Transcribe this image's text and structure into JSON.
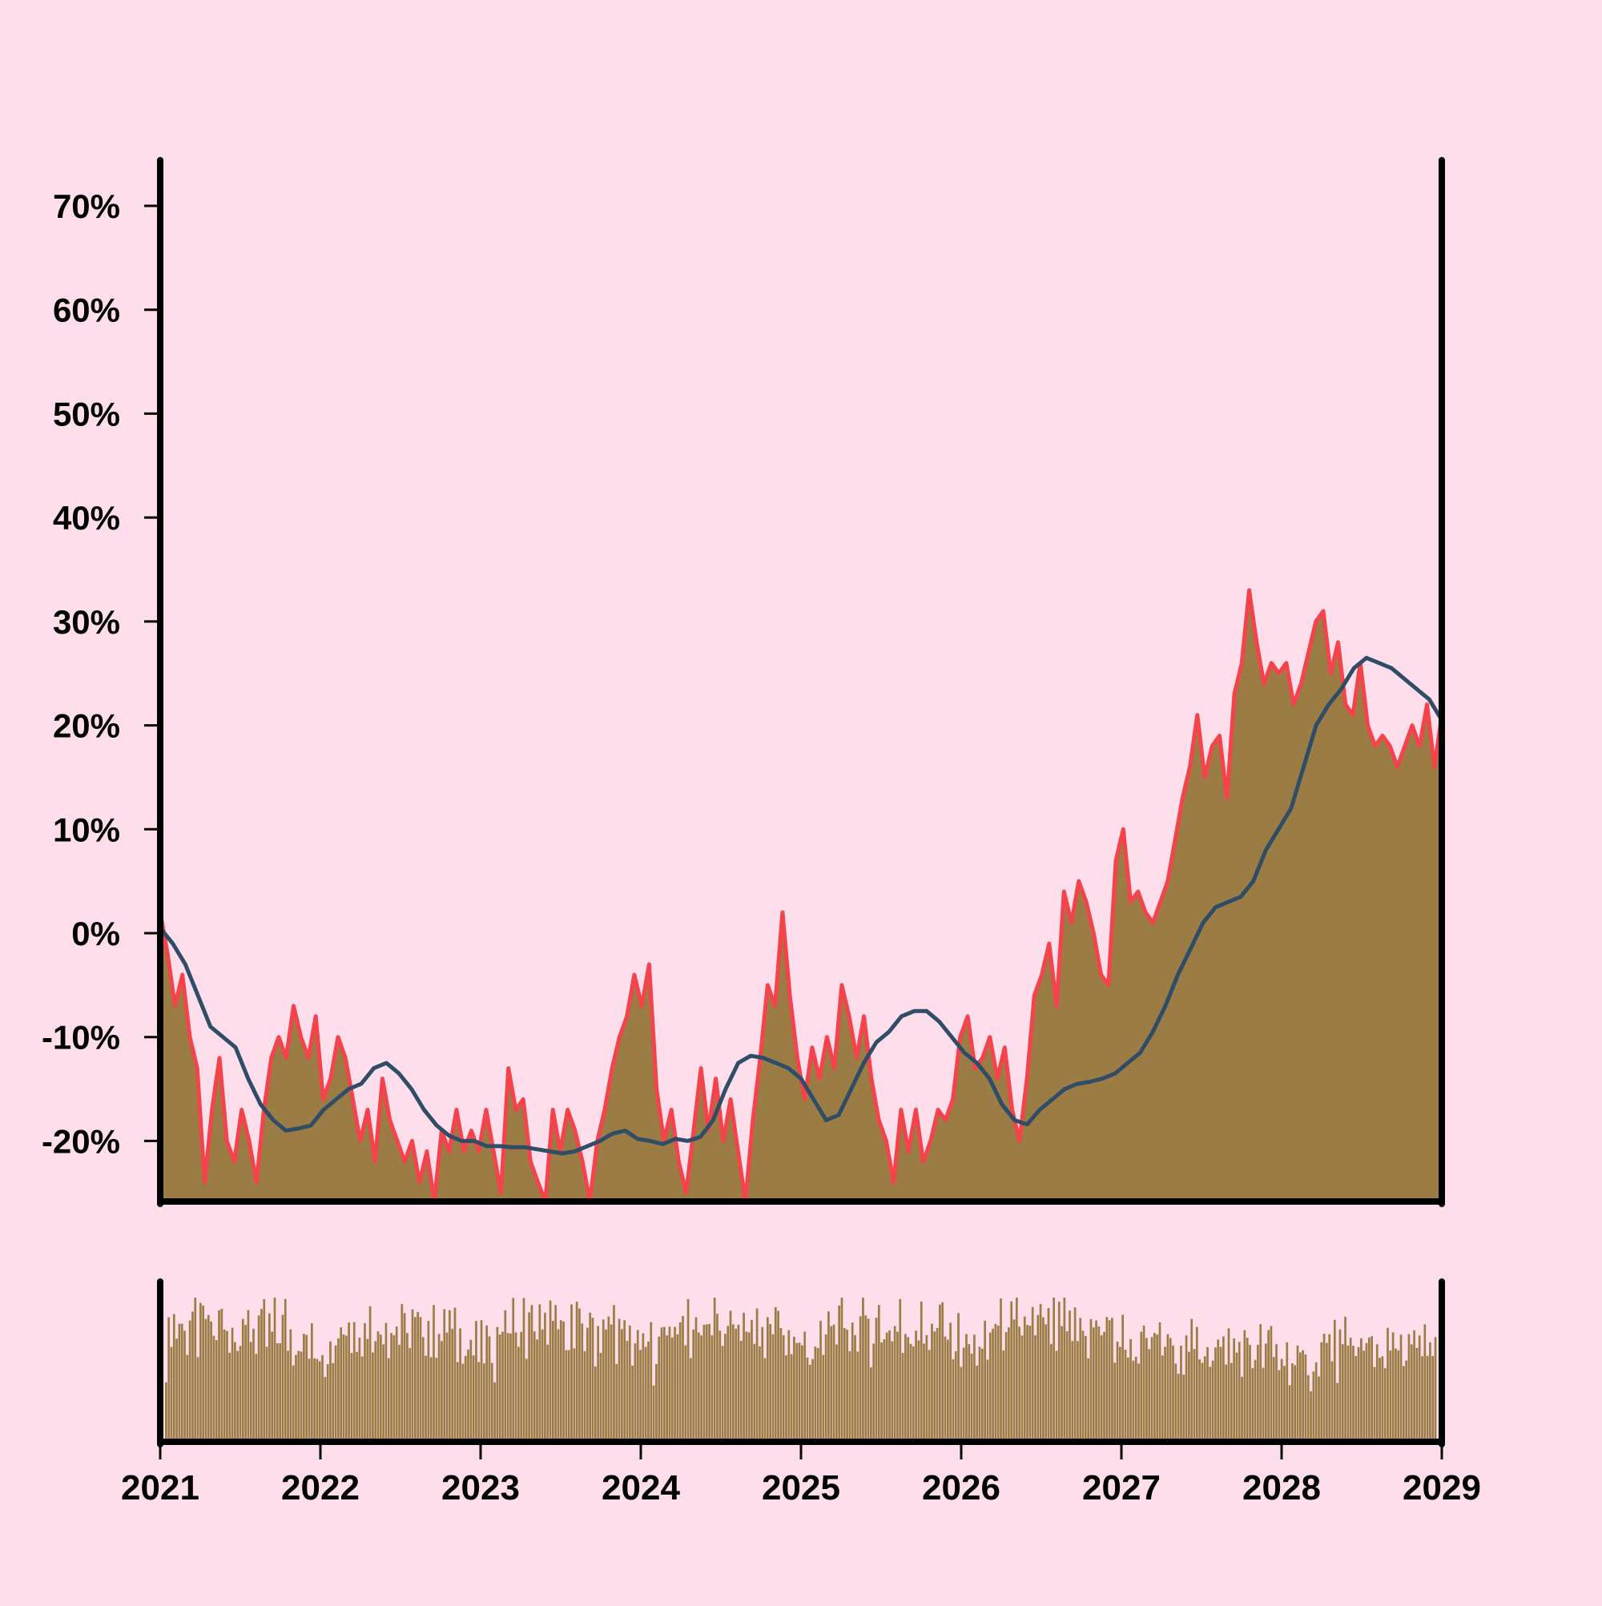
{
  "chart_data": [
    {
      "type": "area",
      "panel": "main",
      "title": "",
      "xlabel": "",
      "ylabel": "",
      "xlim": [
        "2021-01-01",
        "2029-01-01"
      ],
      "ylim": [
        -25.5,
        74
      ],
      "y_ticks": [
        70,
        60,
        50,
        40,
        30,
        20,
        10,
        0,
        -10,
        -20
      ],
      "y_tick_labels": [
        "70%",
        "60%",
        "50%",
        "40%",
        "30%",
        "20%",
        "10%",
        "0%",
        "-10%",
        "-20%"
      ],
      "grid": false,
      "legend": "none",
      "x_step_years": 0.0833,
      "series": [
        {
          "role": "area",
          "values": [
            2,
            -2,
            -7,
            -4,
            -10,
            -13,
            -24,
            -17,
            -12,
            -20,
            -22,
            -17,
            -20,
            -24,
            -17,
            -12,
            -10,
            -12,
            -7,
            -10,
            -12,
            -8,
            -16,
            -14,
            -10,
            -12,
            -16,
            -20,
            -17,
            -22,
            -14,
            -18,
            -20,
            -22,
            -20,
            -24,
            -21,
            -26,
            -19,
            -21,
            -17,
            -21,
            -19,
            -21,
            -17,
            -21,
            -25,
            -13,
            -17,
            -16,
            -22,
            -24,
            -26,
            -17,
            -21,
            -17,
            -19,
            -22,
            -26,
            -20,
            -17,
            -13,
            -10,
            -8,
            -4,
            -7,
            -3,
            -15,
            -20,
            -17,
            -22,
            -25,
            -19,
            -13,
            -19,
            -14,
            -20,
            -16,
            -21,
            -26,
            -18,
            -12,
            -5,
            -7,
            2,
            -6,
            -12,
            -16,
            -11,
            -14,
            -10,
            -13,
            -5,
            -8,
            -12,
            -8,
            -14,
            -18,
            -20,
            -24,
            -17,
            -21,
            -17,
            -22,
            -20,
            -17,
            -18,
            -16,
            -10,
            -8,
            -13,
            -12,
            -10,
            -14,
            -11,
            -17,
            -20,
            -14,
            -6,
            -4,
            -1,
            -7,
            4,
            1,
            5,
            3,
            0,
            -4,
            -5,
            7,
            10,
            3,
            4,
            2,
            1,
            3,
            5,
            9,
            13,
            16,
            21,
            15,
            18,
            19,
            13,
            23,
            26,
            33,
            28,
            24,
            26,
            25,
            26,
            22,
            24,
            27,
            30,
            31,
            25,
            28,
            22,
            21,
            26,
            20,
            18,
            19,
            18,
            16,
            18,
            20,
            18,
            22,
            16,
            21
          ]
        },
        {
          "role": "moving-average",
          "values": [
            0.5,
            -1,
            -3,
            -6,
            -9,
            -10,
            -11,
            -14,
            -16.5,
            -18,
            -19,
            -18.8,
            -18.5,
            -17,
            -16,
            -15,
            -14.5,
            -13,
            -12.5,
            -13.5,
            -15,
            -17,
            -18.5,
            -19.5,
            -20,
            -20,
            -20.5,
            -20.5,
            -20.6,
            -20.6,
            -20.8,
            -21,
            -21.2,
            -21,
            -20.5,
            -20,
            -19.3,
            -19,
            -19.8,
            -20,
            -20.3,
            -19.8,
            -20,
            -19.6,
            -18,
            -15,
            -12.5,
            -11.8,
            -12,
            -12.5,
            -13,
            -14,
            -16,
            -18,
            -17.5,
            -15,
            -12.5,
            -10.5,
            -9.5,
            -8,
            -7.5,
            -7.5,
            -8.5,
            -10,
            -11.5,
            -12.5,
            -14,
            -16.5,
            -18,
            -18.4,
            -17,
            -16,
            -15,
            -14.5,
            -14.3,
            -14,
            -13.5,
            -12.5,
            -11.5,
            -9.5,
            -7,
            -4,
            -1.5,
            1,
            2.5,
            3,
            3.5,
            5,
            8,
            10,
            12,
            16,
            20,
            22,
            23.5,
            25.5,
            26.5,
            26,
            25.5,
            24.5,
            23.5,
            22.5,
            20.5
          ]
        }
      ],
      "colors": {
        "area_fill": "#9b7c45",
        "area_edge": "#f5424b",
        "moving_average": "#2f4d67",
        "axis": "#000000",
        "background": "#ffdeec"
      }
    },
    {
      "type": "bar",
      "panel": "volume",
      "title": "",
      "xlim": [
        "2021-01-01",
        "2029-01-01"
      ],
      "ylim": [
        0,
        1
      ],
      "x_tick_labels": [
        "2021",
        "2022",
        "2023",
        "2024",
        "2025",
        "2026",
        "2027",
        "2028",
        "2029"
      ],
      "bar_count": 480,
      "series": [
        {
          "name": "",
          "values": [
            0.55,
            0.72,
            0.85,
            0.92,
            0.78,
            0.88,
            0.8,
            0.95,
            0.65,
            0.87,
            0.75,
            0.95,
            0.7,
            0.82,
            0.88,
            0.93,
            0.74,
            0.91,
            0.68,
            0.79,
            0.86,
            0.97,
            0.73,
            0.83,
            0.76,
            0.9,
            0.69,
            0.84,
            0.81,
            0.94,
            0.62,
            0.88,
            0.79,
            0.85,
            0.72,
            0.9,
            0.77,
            0.89,
            0.66,
            0.83,
            0.74,
            0.92,
            0.7,
            0.81,
            0.85,
            0.95,
            0.71,
            0.8,
            0.64,
            0.75,
            0.7,
            0.78,
            0.62,
            0.73,
            0.58,
            0.69,
            0.55,
            0.66,
            0.6,
            0.72,
            0.52,
            0.68
          ]
        }
      ]
    }
  ]
}
